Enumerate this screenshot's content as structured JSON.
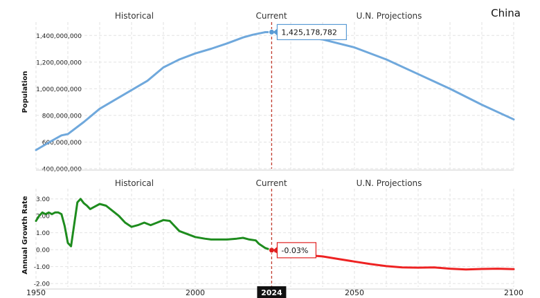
{
  "chart_data": [
    {
      "type": "line",
      "panel": "population",
      "title": "China",
      "ylabel": "Population",
      "section_labels": [
        "Historical",
        "Current",
        "U.N. Projections"
      ],
      "ylim": [
        400000000,
        1500000000
      ],
      "yticks": [
        400000000,
        600000000,
        800000000,
        1000000000,
        1200000000,
        1400000000
      ],
      "ytick_labels": [
        "400,000,000",
        "600,000,000",
        "800,000,000",
        "1,000,000,000",
        "1,200,000,000",
        "1,400,000,000"
      ],
      "x": [
        1950,
        1955,
        1958,
        1960,
        1965,
        1970,
        1975,
        1980,
        1985,
        1990,
        1995,
        2000,
        2005,
        2010,
        2015,
        2018,
        2022,
        2024,
        2030,
        2040,
        2050,
        2060,
        2070,
        2080,
        2090,
        2100
      ],
      "y": [
        540000000,
        610000000,
        650000000,
        660000000,
        750000000,
        850000000,
        920000000,
        990000000,
        1060000000,
        1160000000,
        1220000000,
        1265000000,
        1300000000,
        1340000000,
        1385000000,
        1405000000,
        1425000000,
        1425178782,
        1405000000,
        1370000000,
        1310000000,
        1220000000,
        1110000000,
        1000000000,
        880000000,
        770000000
      ],
      "series_color": "#6fa8dc",
      "annotation": {
        "x": 2024,
        "label": "1,425,178,782"
      }
    },
    {
      "type": "line",
      "panel": "growth",
      "ylabel": "Annual Growth Rate",
      "section_labels": [
        "Historical",
        "Current",
        "U.N. Projections"
      ],
      "ylim": [
        -2.2,
        3.6
      ],
      "yticks": [
        -2,
        -1,
        0,
        1,
        2,
        3
      ],
      "ytick_labels": [
        "-2.00",
        "-1.00",
        "0.00",
        "1.00",
        "2.00",
        "3.00"
      ],
      "xlim": [
        1950,
        2100
      ],
      "xticks": [
        1950,
        2000,
        2050,
        2100
      ],
      "xtick_labels": [
        "1950",
        "2000",
        "2050",
        "2100"
      ],
      "current_year_label": "2024",
      "historical": {
        "color": "#1e8c1e",
        "x": [
          1950,
          1951,
          1952,
          1953,
          1954,
          1955,
          1956,
          1957,
          1958,
          1959,
          1960,
          1961,
          1962,
          1963,
          1964,
          1965,
          1966,
          1967,
          1968,
          1970,
          1972,
          1974,
          1976,
          1978,
          1980,
          1982,
          1984,
          1986,
          1988,
          1990,
          1992,
          1995,
          2000,
          2003,
          2005,
          2010,
          2013,
          2015,
          2017,
          2019,
          2020,
          2022,
          2024
        ],
        "y": [
          1.7,
          2.0,
          2.2,
          2.1,
          2.2,
          2.1,
          2.2,
          2.2,
          2.1,
          1.4,
          0.4,
          0.2,
          1.5,
          2.8,
          3.0,
          2.75,
          2.6,
          2.4,
          2.5,
          2.7,
          2.6,
          2.3,
          2.0,
          1.6,
          1.35,
          1.45,
          1.6,
          1.45,
          1.6,
          1.75,
          1.7,
          1.1,
          0.75,
          0.65,
          0.6,
          0.6,
          0.65,
          0.7,
          0.6,
          0.55,
          0.35,
          0.1,
          -0.03
        ]
      },
      "projection": {
        "color": "#ee2222",
        "x": [
          2024,
          2026,
          2030,
          2035,
          2040,
          2045,
          2050,
          2055,
          2060,
          2065,
          2070,
          2075,
          2080,
          2085,
          2090,
          2095,
          2100
        ],
        "y": [
          -0.03,
          -0.15,
          -0.25,
          -0.32,
          -0.4,
          -0.55,
          -0.7,
          -0.85,
          -0.97,
          -1.05,
          -1.06,
          -1.05,
          -1.12,
          -1.17,
          -1.14,
          -1.12,
          -1.15
        ]
      },
      "annotation": {
        "x": 2024,
        "label": "-0.03%"
      }
    }
  ]
}
